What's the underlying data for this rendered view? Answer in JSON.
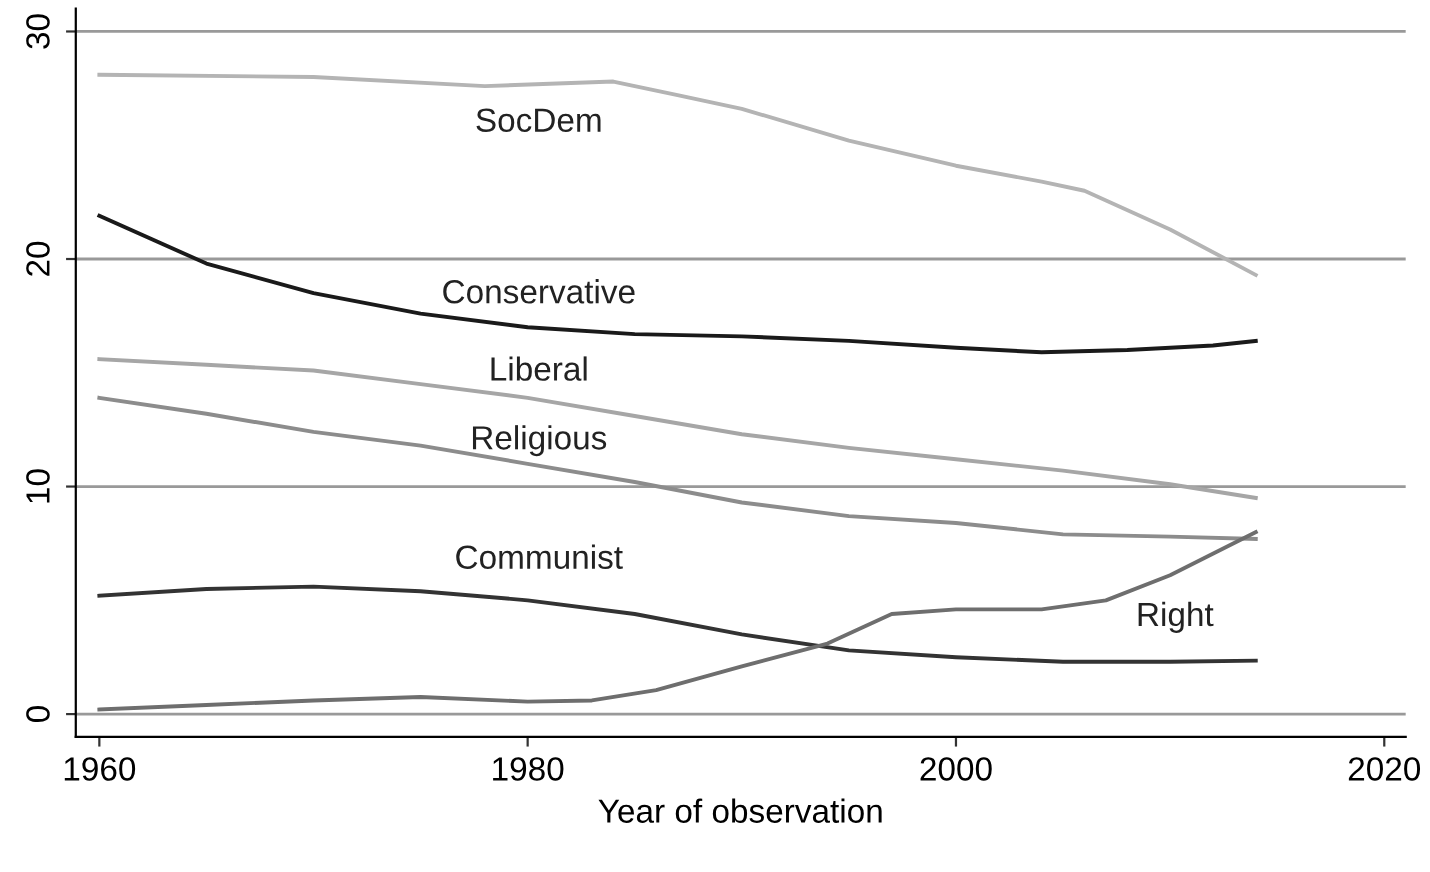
{
  "chart_data": {
    "type": "line",
    "xlabel": "Year of observation",
    "x": [
      1960,
      1965,
      1970,
      1975,
      1980,
      1985,
      1990,
      1995,
      2000,
      2005,
      2010,
      2014
    ],
    "series": [
      {
        "name": "SocDem",
        "color": "#b4b4b4",
        "x": [
          1960,
          1970,
          1978,
          1984,
          1987,
          1990,
          1995,
          2000,
          2004,
          2006,
          2010,
          2014
        ],
        "values": [
          28.1,
          28.0,
          27.6,
          27.8,
          27.2,
          26.6,
          25.2,
          24.1,
          23.4,
          23.0,
          21.3,
          19.3
        ]
      },
      {
        "name": "Conservative",
        "color": "#1a1a1a",
        "x": [
          1960,
          1965,
          1970,
          1975,
          1980,
          1985,
          1990,
          1995,
          2000,
          2004,
          2008,
          2012,
          2014
        ],
        "values": [
          21.9,
          19.8,
          18.5,
          17.6,
          17.0,
          16.7,
          16.6,
          16.4,
          16.1,
          15.9,
          16.0,
          16.2,
          16.4
        ]
      },
      {
        "name": "Liberal",
        "color": "#a6a6a6",
        "values": [
          15.6,
          15.35,
          15.1,
          14.5,
          13.9,
          13.1,
          12.3,
          11.7,
          11.2,
          10.7,
          10.1,
          9.5
        ]
      },
      {
        "name": "Religious",
        "color": "#8c8c8c",
        "values": [
          13.9,
          13.2,
          12.4,
          11.8,
          11.0,
          10.2,
          9.3,
          8.7,
          8.4,
          7.9,
          7.8,
          7.7
        ]
      },
      {
        "name": "Communist",
        "color": "#333333",
        "values": [
          5.2,
          5.5,
          5.6,
          5.4,
          5.0,
          4.4,
          3.5,
          2.8,
          2.5,
          2.3,
          2.3,
          2.35
        ]
      },
      {
        "name": "Right",
        "color": "#6e6e6e",
        "x": [
          1960,
          1965,
          1970,
          1975,
          1980,
          1983,
          1986,
          1990,
          1994,
          1997,
          2000,
          2004,
          2007,
          2010,
          2014
        ],
        "values": [
          0.2,
          0.4,
          0.6,
          0.75,
          0.55,
          0.6,
          1.05,
          2.1,
          3.1,
          4.4,
          4.6,
          4.6,
          5.0,
          6.1,
          8.0
        ]
      }
    ],
    "xlim": [
      1958.9,
      2021
    ],
    "xticks": [
      1960,
      1980,
      2000,
      2020
    ],
    "ylim": [
      -1,
      31
    ],
    "yticks": [
      0,
      10,
      20,
      30
    ],
    "grid": "y",
    "legend": false,
    "marker": "none",
    "line_style": "solid"
  }
}
